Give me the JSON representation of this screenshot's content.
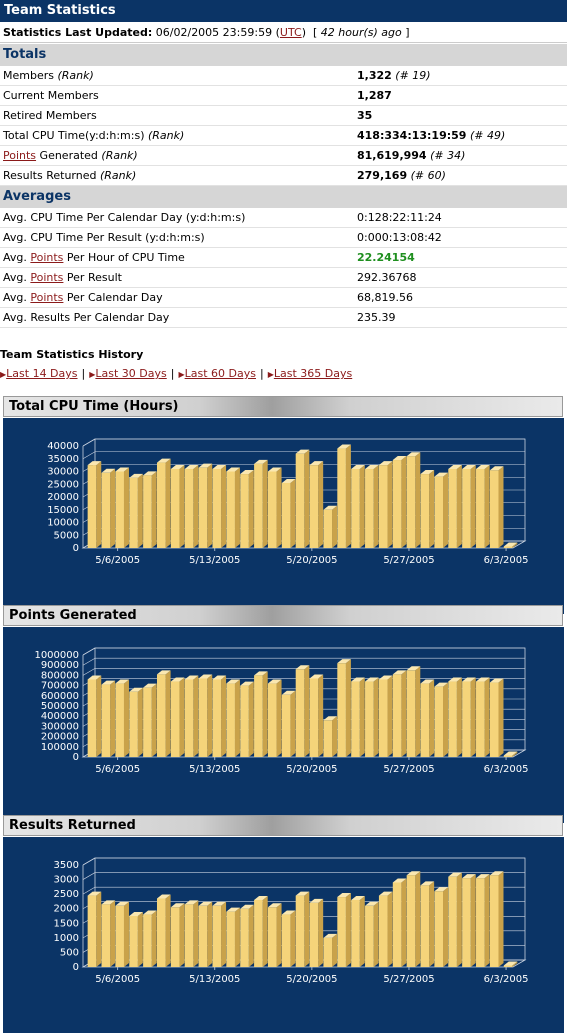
{
  "header": {
    "title": "Team Statistics",
    "updated_label": "Statistics Last Updated:",
    "updated_value": "06/02/2005 23:59:59",
    "utc_link": "UTC",
    "ago_text": "42 hour(s) ago"
  },
  "totals": {
    "heading": "Totals",
    "rows": [
      {
        "label": "Members",
        "label_rank": "(Rank)",
        "value": "1,322",
        "rank": "(# 19)"
      },
      {
        "label": "Current Members",
        "value": "1,287"
      },
      {
        "label": "Retired Members",
        "value": "35"
      },
      {
        "label": "Total CPU Time(y:d:h:m:s)",
        "label_rank": "(Rank)",
        "value": "418:334:13:19:59",
        "rank": "(# 49)"
      },
      {
        "link": "Points",
        "label": " Generated",
        "label_rank": "(Rank)",
        "value": "81,619,994",
        "rank": "(# 34)"
      },
      {
        "label": "Results Returned",
        "label_rank": "(Rank)",
        "value": "279,169",
        "rank": "(# 60)"
      }
    ]
  },
  "averages": {
    "heading": "Averages",
    "rows": [
      {
        "label": "Avg. CPU Time Per Calendar Day (y:d:h:m:s)",
        "value": "0:128:22:11:24"
      },
      {
        "label": "Avg. CPU Time Per Result (y:d:h:m:s)",
        "value": "0:000:13:08:42"
      },
      {
        "pre": "Avg. ",
        "link": "Points",
        "label": " Per Hour of CPU Time",
        "value": "22.24154",
        "value_color": "#1f8f1f"
      },
      {
        "pre": "Avg. ",
        "link": "Points",
        "label": " Per Result",
        "value": "292.36768"
      },
      {
        "pre": "Avg. ",
        "link": "Points",
        "label": " Per Calendar Day",
        "value": "68,819.56"
      },
      {
        "label": "Avg. Results Per Calendar Day",
        "value": "235.39"
      }
    ]
  },
  "history": {
    "title": "Team Statistics History",
    "links": [
      "Last 14 Days",
      "Last 30 Days",
      "Last 60 Days",
      "Last 365 Days"
    ]
  },
  "colors": {
    "navy": "#0b3466",
    "bar": "#f5d47a",
    "bar_side": "#c9a24a",
    "bar_top": "#fae7b0"
  },
  "chart_data": [
    {
      "type": "bar",
      "title": "Total CPU Time (Hours)",
      "x_tick_labels": [
        "5/6/2005",
        "5/13/2005",
        "5/20/2005",
        "5/27/2005",
        "6/3/2005"
      ],
      "y_ticks": [
        0,
        5000,
        10000,
        15000,
        20000,
        25000,
        30000,
        35000,
        40000
      ],
      "ylim": [
        0,
        40000
      ],
      "values": [
        32500,
        29500,
        30000,
        27500,
        28500,
        33500,
        31000,
        31000,
        31500,
        31000,
        30000,
        29000,
        33000,
        30000,
        25500,
        37000,
        32500,
        15000,
        39000,
        31000,
        31000,
        32500,
        34500,
        36000,
        29000,
        28000,
        31000,
        31000,
        31000,
        30500,
        0
      ]
    },
    {
      "type": "bar",
      "title": "Points Generated",
      "x_tick_labels": [
        "5/6/2005",
        "5/13/2005",
        "5/20/2005",
        "5/27/2005",
        "6/3/2005"
      ],
      "y_ticks": [
        0,
        100000,
        200000,
        300000,
        400000,
        500000,
        600000,
        700000,
        800000,
        900000,
        1000000
      ],
      "ylim": [
        0,
        1000000
      ],
      "values": [
        760000,
        710000,
        720000,
        640000,
        680000,
        810000,
        740000,
        760000,
        770000,
        760000,
        720000,
        700000,
        800000,
        720000,
        610000,
        860000,
        770000,
        360000,
        920000,
        740000,
        740000,
        760000,
        810000,
        850000,
        720000,
        690000,
        740000,
        740000,
        740000,
        730000,
        0
      ]
    },
    {
      "type": "bar",
      "title": "Results Returned",
      "x_tick_labels": [
        "5/6/2005",
        "5/13/2005",
        "5/20/2005",
        "5/27/2005",
        "6/3/2005"
      ],
      "y_ticks": [
        0,
        500,
        1000,
        1500,
        2000,
        2500,
        3000,
        3500
      ],
      "ylim": [
        0,
        3500
      ],
      "values": [
        2450,
        2150,
        2100,
        1750,
        1800,
        2350,
        2050,
        2150,
        2100,
        2100,
        1900,
        2000,
        2300,
        2050,
        1800,
        2450,
        2200,
        1000,
        2400,
        2300,
        2100,
        2450,
        2900,
        3150,
        2800,
        2600,
        3100,
        3050,
        3050,
        3150,
        0
      ]
    }
  ]
}
